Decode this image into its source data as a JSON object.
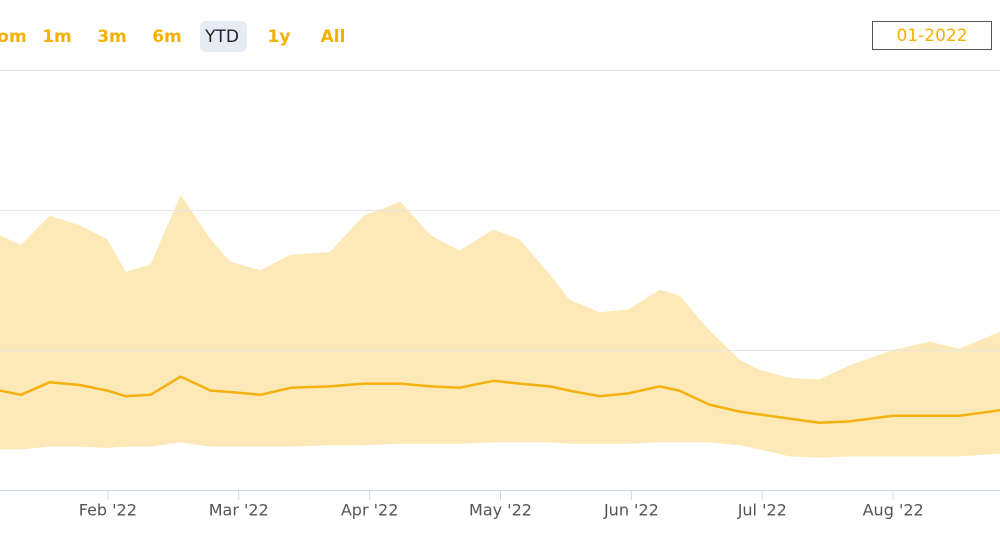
{
  "range_selector": {
    "buttons": [
      "om",
      "1m",
      "3m",
      "6m",
      "YTD",
      "1y",
      "All"
    ],
    "selected": 4,
    "date_input": "01-2022"
  },
  "chart_data": {
    "type": "arearange-line",
    "x": [
      1.18,
      1.34,
      1.56,
      1.79,
      2.0,
      2.14,
      2.33,
      2.56,
      2.79,
      2.94,
      3.17,
      3.4,
      3.7,
      3.96,
      4.24,
      4.47,
      4.69,
      4.95,
      5.15,
      5.38,
      5.53,
      5.76,
      5.98,
      6.22,
      6.37,
      6.6,
      6.83,
      6.98,
      7.21,
      7.44,
      7.67,
      8.0,
      8.28,
      8.51,
      8.82
    ],
    "band": {
      "color": "#fde9b8",
      "high": [
        1.82,
        1.75,
        1.96,
        1.89,
        1.79,
        1.56,
        1.61,
        2.11,
        1.79,
        1.63,
        1.57,
        1.68,
        1.7,
        1.96,
        2.06,
        1.82,
        1.71,
        1.86,
        1.79,
        1.54,
        1.36,
        1.27,
        1.29,
        1.43,
        1.39,
        1.14,
        0.93,
        0.86,
        0.8,
        0.79,
        0.89,
        1.0,
        1.06,
        1.01,
        1.13
      ],
      "low": [
        0.29,
        0.29,
        0.31,
        0.31,
        0.3,
        0.31,
        0.31,
        0.34,
        0.31,
        0.31,
        0.31,
        0.31,
        0.32,
        0.32,
        0.33,
        0.33,
        0.33,
        0.34,
        0.34,
        0.34,
        0.33,
        0.33,
        0.33,
        0.34,
        0.34,
        0.34,
        0.32,
        0.29,
        0.24,
        0.23,
        0.24,
        0.24,
        0.24,
        0.24,
        0.26
      ]
    },
    "series": [
      {
        "color": "#f5b20f",
        "values": [
          0.71,
          0.68,
          0.77,
          0.75,
          0.71,
          0.67,
          0.68,
          0.81,
          0.71,
          0.7,
          0.68,
          0.73,
          0.74,
          0.76,
          0.76,
          0.74,
          0.73,
          0.78,
          0.76,
          0.74,
          0.71,
          0.67,
          0.69,
          0.74,
          0.71,
          0.61,
          0.56,
          0.54,
          0.51,
          0.48,
          0.49,
          0.53,
          0.53,
          0.53,
          0.57
        ]
      }
    ],
    "xlim": [
      1.18,
      8.82
    ],
    "xticks": [
      {
        "value": 2,
        "label": "Feb '22"
      },
      {
        "value": 3,
        "label": "Mar '22"
      },
      {
        "value": 4,
        "label": "Apr '22"
      },
      {
        "value": 5,
        "label": "May '22"
      },
      {
        "value": 6,
        "label": "Jun '22"
      },
      {
        "value": 7,
        "label": "Jul '22"
      },
      {
        "value": 8,
        "label": "Aug '22"
      }
    ],
    "ylim": [
      0,
      3
    ],
    "yticks": [
      1,
      2,
      3
    ],
    "grid": true
  }
}
